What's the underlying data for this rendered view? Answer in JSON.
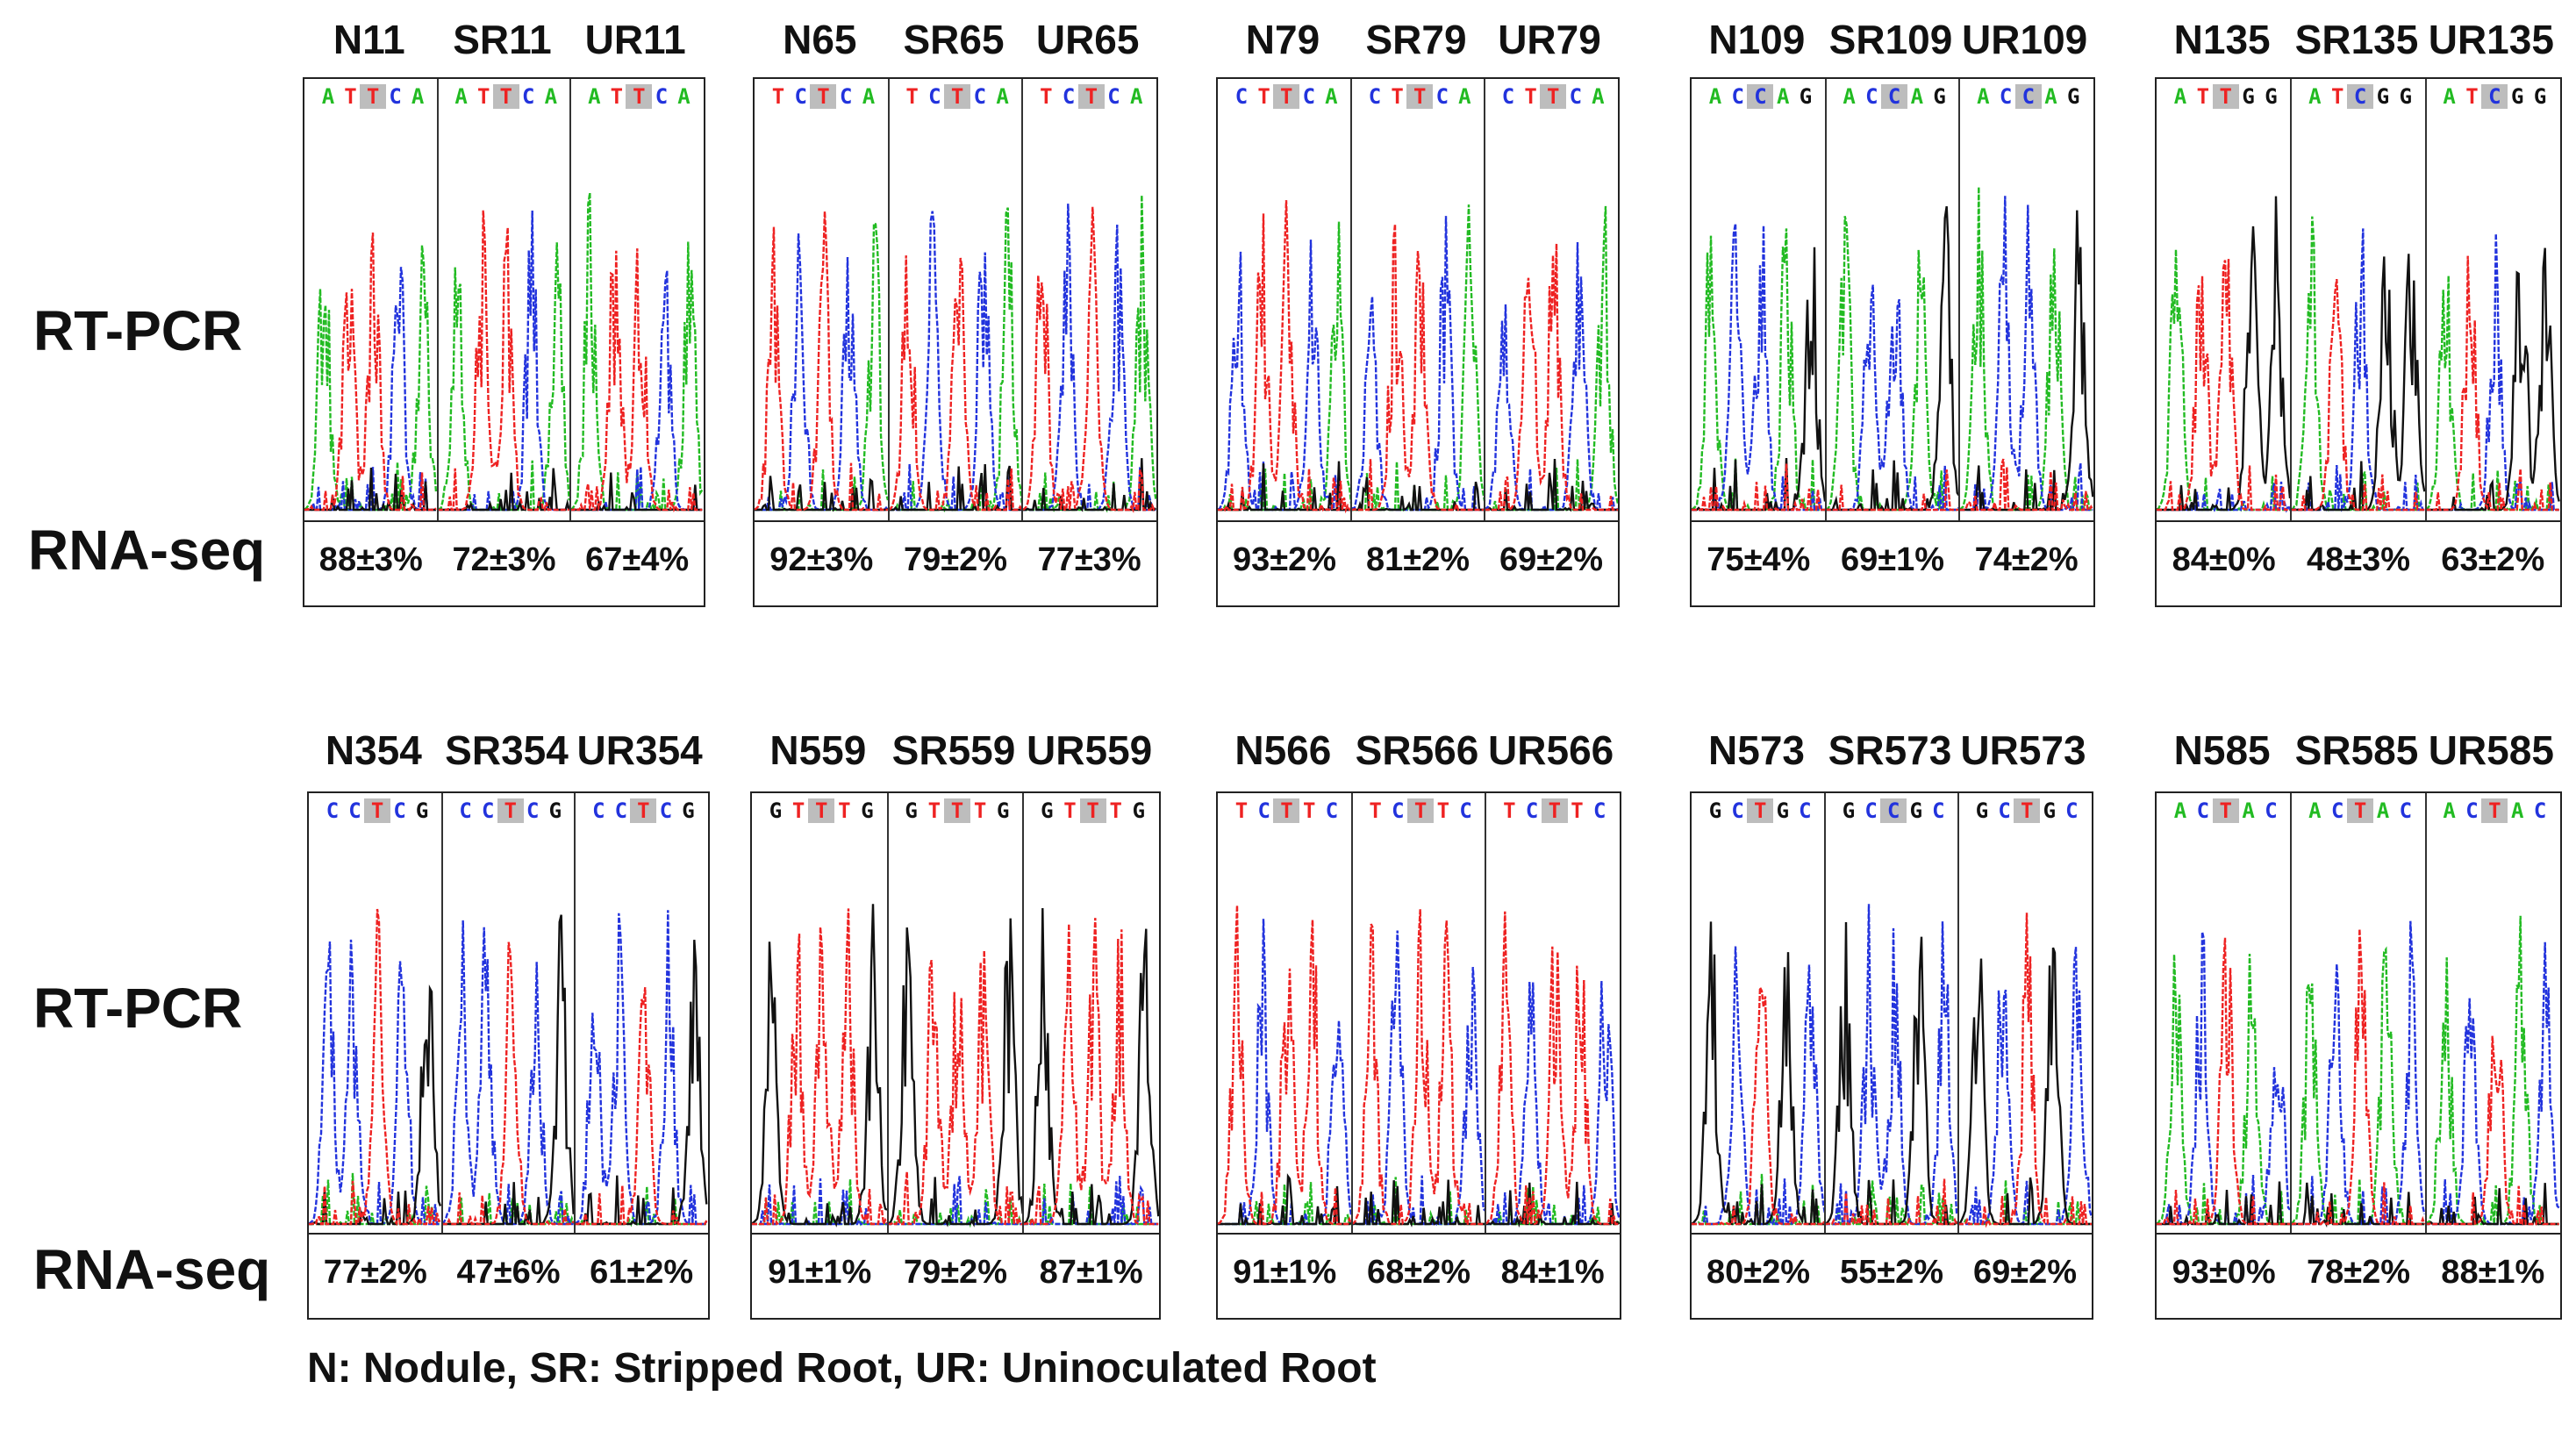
{
  "row_labels": {
    "rt_pcr": "RT-PCR",
    "rna_seq": "RNA-seq"
  },
  "legend": "N: Nodule,  SR: Stripped Root,  UR: Uninoculated Root",
  "colors": {
    "A": "#22bb22",
    "C": "#2233dd",
    "G": "#111111",
    "T": "#ee2222",
    "highlight": "#bdbdbd"
  },
  "groups": [
    {
      "row": 0,
      "labels": [
        "N11",
        "SR11",
        "UR11"
      ],
      "seqs": [
        [
          "A",
          "T",
          "T",
          "C",
          "A"
        ],
        [
          "A",
          "T",
          "T",
          "C",
          "A"
        ],
        [
          "A",
          "T",
          "T",
          "C",
          "A"
        ]
      ],
      "values": [
        "88±3%",
        "72±3%",
        "67±4%"
      ]
    },
    {
      "row": 0,
      "labels": [
        "N65",
        "SR65",
        "UR65"
      ],
      "seqs": [
        [
          "T",
          "C",
          "T",
          "C",
          "A"
        ],
        [
          "T",
          "C",
          "T",
          "C",
          "A"
        ],
        [
          "T",
          "C",
          "T",
          "C",
          "A"
        ]
      ],
      "values": [
        "92±3%",
        "79±2%",
        "77±3%"
      ]
    },
    {
      "row": 0,
      "labels": [
        "N79",
        "SR79",
        "UR79"
      ],
      "seqs": [
        [
          "C",
          "T",
          "T",
          "C",
          "A"
        ],
        [
          "C",
          "T",
          "T",
          "C",
          "A"
        ],
        [
          "C",
          "T",
          "T",
          "C",
          "A"
        ]
      ],
      "values": [
        "93±2%",
        "81±2%",
        "69±2%"
      ]
    },
    {
      "row": 0,
      "labels": [
        "N109",
        "SR109",
        "UR109"
      ],
      "seqs": [
        [
          "A",
          "C",
          "C",
          "A",
          "G"
        ],
        [
          "A",
          "C",
          "C",
          "A",
          "G"
        ],
        [
          "A",
          "C",
          "C",
          "A",
          "G"
        ]
      ],
      "values": [
        "75±4%",
        "69±1%",
        "74±2%"
      ]
    },
    {
      "row": 0,
      "labels": [
        "N135",
        "SR135",
        "UR135"
      ],
      "seqs": [
        [
          "A",
          "T",
          "T",
          "G",
          "G"
        ],
        [
          "A",
          "T",
          "C",
          "G",
          "G"
        ],
        [
          "A",
          "T",
          "C",
          "G",
          "G"
        ]
      ],
      "values": [
        "84±0%",
        "48±3%",
        "63±2%"
      ]
    },
    {
      "row": 1,
      "labels": [
        "N354",
        "SR354",
        "UR354"
      ],
      "seqs": [
        [
          "C",
          "C",
          "T",
          "C",
          "G"
        ],
        [
          "C",
          "C",
          "T",
          "C",
          "G"
        ],
        [
          "C",
          "C",
          "T",
          "C",
          "G"
        ]
      ],
      "values": [
        "77±2%",
        "47±6%",
        "61±2%"
      ]
    },
    {
      "row": 1,
      "labels": [
        "N559",
        "SR559",
        "UR559"
      ],
      "seqs": [
        [
          "G",
          "T",
          "T",
          "T",
          "G"
        ],
        [
          "G",
          "T",
          "T",
          "T",
          "G"
        ],
        [
          "G",
          "T",
          "T",
          "T",
          "G"
        ]
      ],
      "values": [
        "91±1%",
        "79±2%",
        "87±1%"
      ]
    },
    {
      "row": 1,
      "labels": [
        "N566",
        "SR566",
        "UR566"
      ],
      "seqs": [
        [
          "T",
          "C",
          "T",
          "T",
          "C"
        ],
        [
          "T",
          "C",
          "T",
          "T",
          "C"
        ],
        [
          "T",
          "C",
          "T",
          "T",
          "C"
        ]
      ],
      "values": [
        "91±1%",
        "68±2%",
        "84±1%"
      ]
    },
    {
      "row": 1,
      "labels": [
        "N573",
        "SR573",
        "UR573"
      ],
      "seqs": [
        [
          "G",
          "C",
          "T",
          "G",
          "C"
        ],
        [
          "G",
          "C",
          "C",
          "G",
          "C"
        ],
        [
          "G",
          "C",
          "T",
          "G",
          "C"
        ]
      ],
      "values": [
        "80±2%",
        "55±2%",
        "69±2%"
      ]
    },
    {
      "row": 1,
      "labels": [
        "N585",
        "SR585",
        "UR585"
      ],
      "seqs": [
        [
          "A",
          "C",
          "T",
          "A",
          "C"
        ],
        [
          "A",
          "C",
          "T",
          "A",
          "C"
        ],
        [
          "A",
          "C",
          "T",
          "A",
          "C"
        ]
      ],
      "values": [
        "93±0%",
        "78±2%",
        "88±1%"
      ]
    }
  ]
}
